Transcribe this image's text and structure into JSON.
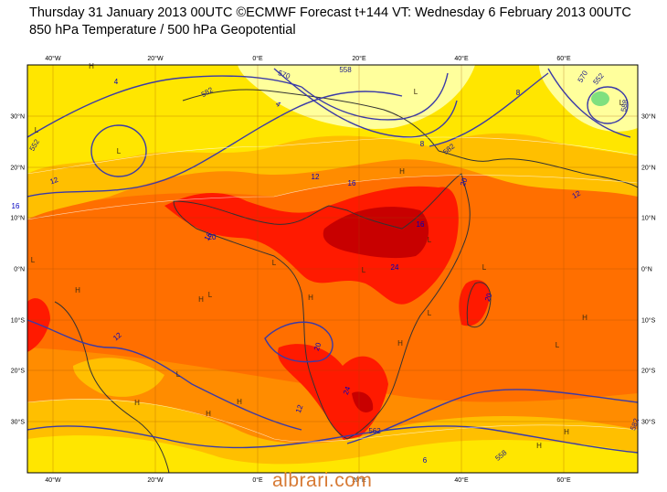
{
  "header": {
    "line1": "Thursday 31 January 2013 00UTC ©ECMWF Forecast t+144 VT: Wednesday 6 February 2013 00UTC",
    "line2": "850 hPa Temperature / 500 hPa Geopotential"
  },
  "axes": {
    "lon_labels": [
      "40°W",
      "20°W",
      "0°E",
      "20°E",
      "40°E",
      "60°E"
    ],
    "lat_labels": [
      "30°N",
      "20°N",
      "10°N",
      "0°N",
      "10°S",
      "20°S",
      "30°S"
    ]
  },
  "contour_labels": {
    "temperature": [
      "4",
      "4",
      "8",
      "8",
      "12",
      "12",
      "16",
      "16",
      "16",
      "16",
      "20",
      "20",
      "20",
      "20",
      "24",
      "24",
      "12",
      "12",
      "12",
      "6"
    ],
    "geopotential": [
      "552",
      "570",
      "558",
      "552",
      "582",
      "582",
      "570",
      "562",
      "588",
      "558",
      "582"
    ]
  },
  "pressure_marks": [
    "L",
    "L",
    "L",
    "L",
    "L",
    "L",
    "L",
    "L",
    "L",
    "L",
    "L",
    "L",
    "L",
    "H",
    "H",
    "H",
    "H",
    "H",
    "H",
    "H",
    "H",
    "H",
    "H",
    "H",
    "H"
  ],
  "colors": {
    "cold_yellow": "#fff176",
    "pale_yellow": "#ffff9c",
    "yellow": "#ffe600",
    "gold": "#ffbf00",
    "orange": "#ff8c00",
    "dark_orange": "#ff6600",
    "red": "#ff1a00",
    "dark_red": "#c80000",
    "light_green": "#7fe07f",
    "coast": "#333333",
    "contour": "#3a3aa8"
  },
  "watermark": "albrari.com"
}
